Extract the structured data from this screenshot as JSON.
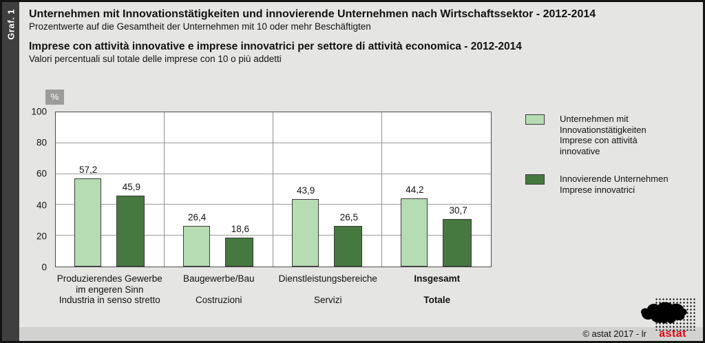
{
  "sidebar": {
    "label": "Graf. 1"
  },
  "header": {
    "title_de": "Unternehmen mit Innovationstätigkeiten und innovierende Unternehmen nach Wirtschaftssektor - 2012-2014",
    "subtitle_de": "Prozentwerte auf die Gesamtheit der Unternehmen mit 10 oder mehr Beschäftigten",
    "title_it": "Imprese con attività innovative e imprese innovatrici per settore di attività economica - 2012-2014",
    "subtitle_it": "Valori percentuali sul totale delle imprese con 10 o più addetti"
  },
  "chart_data": {
    "type": "bar",
    "unit_label": "%",
    "ylim": [
      0,
      100
    ],
    "yticks": [
      0,
      20,
      40,
      60,
      80,
      100
    ],
    "grid": true,
    "legend_position": "right",
    "categories": [
      {
        "lines": [
          "Produzierendes Gewerbe",
          "im engeren Sinn",
          "Industria in senso stretto"
        ],
        "bold": false
      },
      {
        "lines": [
          "Baugewerbe/Bau",
          "",
          "Costruzioni"
        ],
        "bold": false
      },
      {
        "lines": [
          "Dienstleistungsbereiche",
          "",
          "Servizi"
        ],
        "bold": false
      },
      {
        "lines": [
          "Insgesamt",
          "",
          "Totale"
        ],
        "bold": true
      }
    ],
    "series": [
      {
        "name": "Unternehmen mit Innovationstätigkeiten / Imprese con attività innovative",
        "legend_lines": [
          "Unternehmen mit",
          "Innovationstätigkeiten",
          "Imprese con attività",
          "innovative"
        ],
        "color": "#b5dcb2",
        "values": [
          57.2,
          26.4,
          43.9,
          44.2
        ],
        "labels": [
          "57,2",
          "26,4",
          "43,9",
          "44,2"
        ]
      },
      {
        "name": "Innovierende Unternehmen / Imprese innovatrici",
        "legend_lines": [
          "Innovierende Unternehmen",
          "Imprese innovatrici"
        ],
        "color": "#46793f",
        "values": [
          45.9,
          18.6,
          26.5,
          30.7
        ],
        "labels": [
          "45,9",
          "18,6",
          "26,5",
          "30,7"
        ]
      }
    ]
  },
  "footer": {
    "copyright": "© astat 2017 - lr",
    "wordmark": "astat",
    "wordmark_color": "#e30613"
  }
}
